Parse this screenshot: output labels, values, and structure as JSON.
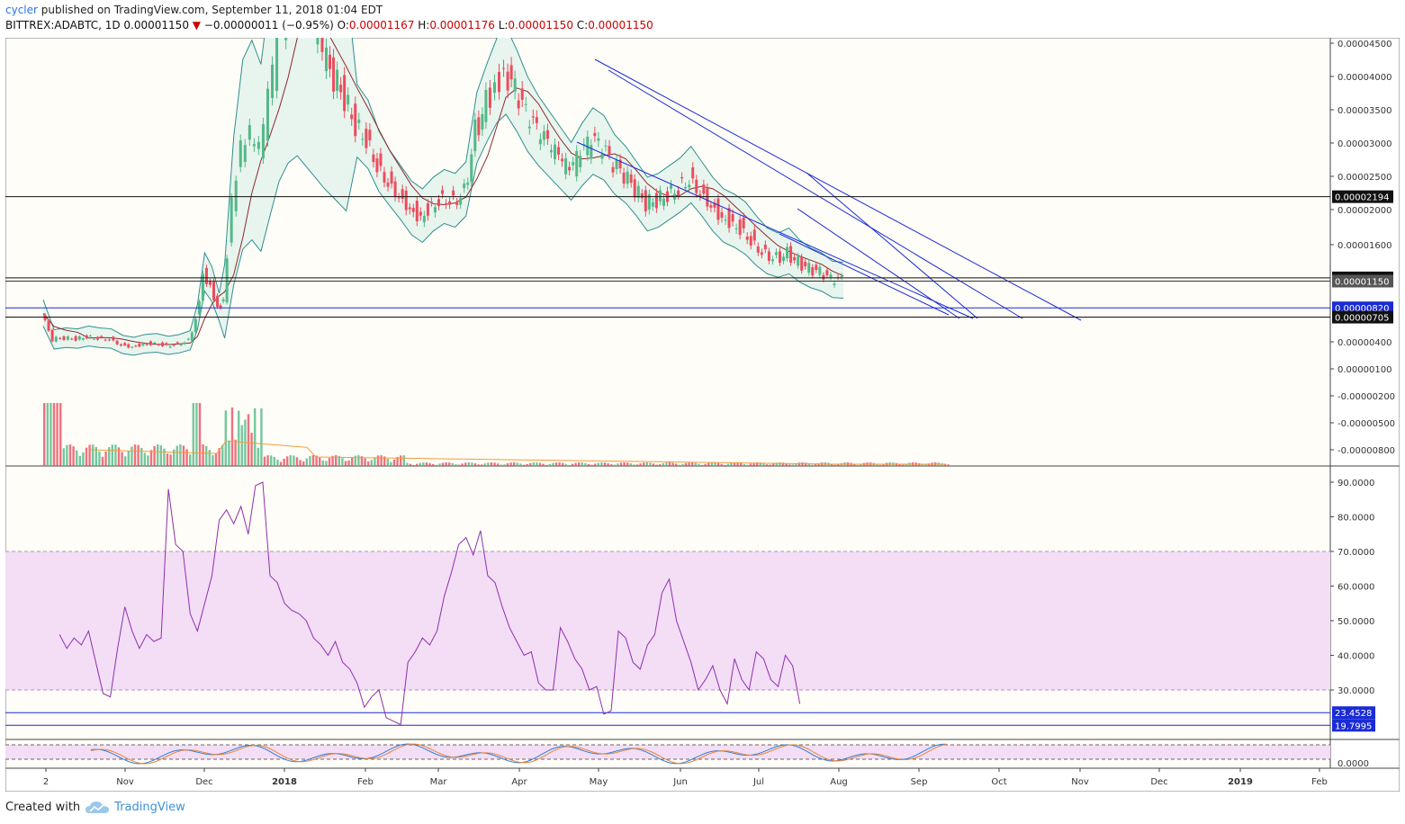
{
  "header": {
    "user": "cycler",
    "published_text": "published on TradingView.com, September 11, 2018 01:04 EDT"
  },
  "ticker": {
    "symbol": "BITTREX:ADABTC, 1D",
    "last": "0.00001150",
    "change": "−0.00000011 (−0.95%)",
    "o_label": "O:",
    "o": "0.00001167",
    "h_label": "H:",
    "h": "0.00001176",
    "l_label": "L:",
    "l": "0.00001150",
    "c_label": "C:",
    "c": "0.00001150"
  },
  "footer": {
    "created_with": "Created with",
    "brand": "TradingView"
  },
  "colors": {
    "up": "#53b987",
    "down": "#eb4d5c",
    "bb_band": "#2f8f8f",
    "bb_fill": "#e8f4ee",
    "ma": "#8b2a2a",
    "trend": "#1a2bd6",
    "rsi_line": "#8e2fb0",
    "rsi_band": "#f3def5",
    "stoch_k": "#2f7fd6",
    "stoch_d": "#e8863a",
    "vol_ma": "#f39c3c",
    "bg": "#fffdf7"
  },
  "chart_data": [
    {
      "type": "candlestick",
      "panel": "price",
      "indicators": [
        "Bollinger Bands",
        "Moving Average",
        "Volume"
      ],
      "price_labels": [
        "0.00004500",
        "0.00004000",
        "0.00003500",
        "0.00003000",
        "0.00002500",
        "0.00002000",
        "0.00001600",
        "0.00000400",
        "0.00000100",
        "-0.00000200",
        "-0.00000500",
        "-0.00000800"
      ],
      "price_tick_values": [
        4.5,
        4.0,
        3.5,
        3.0,
        2.5,
        2.0,
        1.6,
        0.4,
        0.1,
        -0.2,
        -0.5,
        -0.8
      ],
      "horizontal_levels": [
        {
          "label": "0.00002194",
          "value": 2.194,
          "style": "black"
        },
        {
          "label": "0.00001190",
          "value": 1.19,
          "style": "black"
        },
        {
          "label": "0.00001150",
          "value": 1.15,
          "style": "gray"
        },
        {
          "label": "0.00000820",
          "value": 0.82,
          "style": "blue"
        },
        {
          "label": "0.00000705",
          "value": 0.705,
          "style": "black"
        }
      ],
      "x_labels": [
        "2",
        "Nov",
        "Dec",
        "2018",
        "Feb",
        "Mar",
        "Apr",
        "May",
        "Jun",
        "Jul",
        "Aug",
        "Sep",
        "Oct",
        "Nov",
        "Dec",
        "2019",
        "Feb"
      ],
      "close_series_1e5": [
        0.75,
        0.43,
        0.45,
        0.44,
        0.47,
        0.45,
        0.44,
        0.37,
        0.35,
        0.38,
        0.39,
        0.36,
        0.38,
        0.42,
        0.7,
        1.25,
        1.1,
        0.82,
        0.9,
        2.1,
        2.9,
        3.1,
        2.85,
        3.6,
        4.5,
        5.0,
        5.2,
        4.9,
        4.6,
        4.3,
        4.0,
        3.7,
        3.3,
        3.1,
        2.7,
        2.45,
        2.25,
        2.05,
        1.95,
        2.1,
        2.2,
        2.15,
        2.3,
        3.2,
        3.6,
        3.9,
        4.05,
        3.75,
        3.4,
        3.15,
        2.95,
        2.75,
        2.55,
        2.8,
        3.0,
        2.9,
        2.65,
        2.5,
        2.3,
        2.1,
        2.15,
        2.25,
        2.35,
        2.5,
        2.3,
        2.1,
        1.95,
        1.88,
        1.78,
        1.62,
        1.5,
        1.45,
        1.5,
        1.38,
        1.3,
        1.25,
        1.16,
        1.15
      ],
      "close_series_x_frac": [
        0.0,
        0.012,
        0.025,
        0.038,
        0.05,
        0.062,
        0.075,
        0.088,
        0.1,
        0.112,
        0.125,
        0.138,
        0.15,
        0.162,
        0.17,
        0.178,
        0.186,
        0.194,
        0.2,
        0.21,
        0.22,
        0.23,
        0.24,
        0.25,
        0.26,
        0.27,
        0.28,
        0.29,
        0.3,
        0.31,
        0.322,
        0.334,
        0.346,
        0.358,
        0.37,
        0.382,
        0.394,
        0.406,
        0.418,
        0.43,
        0.442,
        0.454,
        0.466,
        0.478,
        0.49,
        0.5,
        0.51,
        0.522,
        0.534,
        0.546,
        0.558,
        0.57,
        0.582,
        0.594,
        0.606,
        0.618,
        0.63,
        0.642,
        0.654,
        0.666,
        0.678,
        0.69,
        0.702,
        0.714,
        0.726,
        0.738,
        0.75,
        0.762,
        0.774,
        0.786,
        0.798,
        0.81,
        0.822,
        0.834,
        0.846,
        0.858,
        0.87,
        0.882
      ]
    },
    {
      "type": "line",
      "panel": "rsi",
      "band": [
        30,
        70
      ],
      "tick_labels": [
        "90.0000",
        "80.0000",
        "70.0000",
        "60.0000",
        "50.0000",
        "40.0000",
        "30.0000"
      ],
      "tick_values": [
        90,
        80,
        70,
        60,
        50,
        40,
        30
      ],
      "levels": [
        {
          "label": "23.4528",
          "value": 23.4528
        },
        {
          "label": "19.7995",
          "value": 19.7995
        }
      ],
      "values": [
        46,
        42,
        45,
        43,
        47,
        38,
        29,
        28,
        42,
        54,
        47,
        42,
        46,
        44,
        45,
        88,
        72,
        70,
        52,
        47,
        55,
        63,
        79,
        82,
        78,
        83,
        75,
        89,
        90,
        63,
        61,
        55,
        53,
        52,
        50,
        45,
        43,
        40,
        44,
        38,
        36,
        32,
        25,
        28,
        30,
        22,
        21,
        20,
        38,
        41,
        45,
        43,
        47,
        57,
        64,
        72,
        74,
        69,
        76,
        63,
        61,
        54,
        48,
        44,
        40,
        41,
        32,
        30,
        30,
        48,
        44,
        39,
        36,
        30,
        31,
        23,
        24,
        47,
        45,
        38,
        36,
        43,
        46,
        58,
        62,
        50,
        44,
        38,
        30,
        33,
        37,
        30,
        26,
        39,
        33,
        30,
        41,
        39,
        33,
        31,
        40,
        37,
        26
      ],
      "x_frac": [
        0.018,
        0.026,
        0.034,
        0.042,
        0.05,
        0.058,
        0.066,
        0.074,
        0.082,
        0.09,
        0.098,
        0.106,
        0.114,
        0.122,
        0.13,
        0.138,
        0.146,
        0.154,
        0.162,
        0.17,
        0.178,
        0.186,
        0.194,
        0.202,
        0.21,
        0.218,
        0.226,
        0.234,
        0.242,
        0.25,
        0.258,
        0.266,
        0.274,
        0.282,
        0.29,
        0.298,
        0.306,
        0.314,
        0.322,
        0.33,
        0.338,
        0.346,
        0.354,
        0.362,
        0.37,
        0.378,
        0.386,
        0.394,
        0.402,
        0.41,
        0.418,
        0.426,
        0.434,
        0.442,
        0.45,
        0.458,
        0.466,
        0.474,
        0.482,
        0.49,
        0.498,
        0.506,
        0.514,
        0.522,
        0.53,
        0.538,
        0.546,
        0.554,
        0.562,
        0.57,
        0.578,
        0.586,
        0.594,
        0.602,
        0.61,
        0.618,
        0.626,
        0.634,
        0.642,
        0.65,
        0.658,
        0.666,
        0.674,
        0.682,
        0.69,
        0.698,
        0.706,
        0.714,
        0.722,
        0.73,
        0.738,
        0.746,
        0.754,
        0.762,
        0.77,
        0.778,
        0.786,
        0.794,
        0.802,
        0.81,
        0.818,
        0.826,
        0.834
      ]
    },
    {
      "type": "line",
      "panel": "stochastic",
      "tick_labels": [
        "0.0000"
      ],
      "band": [
        20,
        80
      ]
    }
  ]
}
